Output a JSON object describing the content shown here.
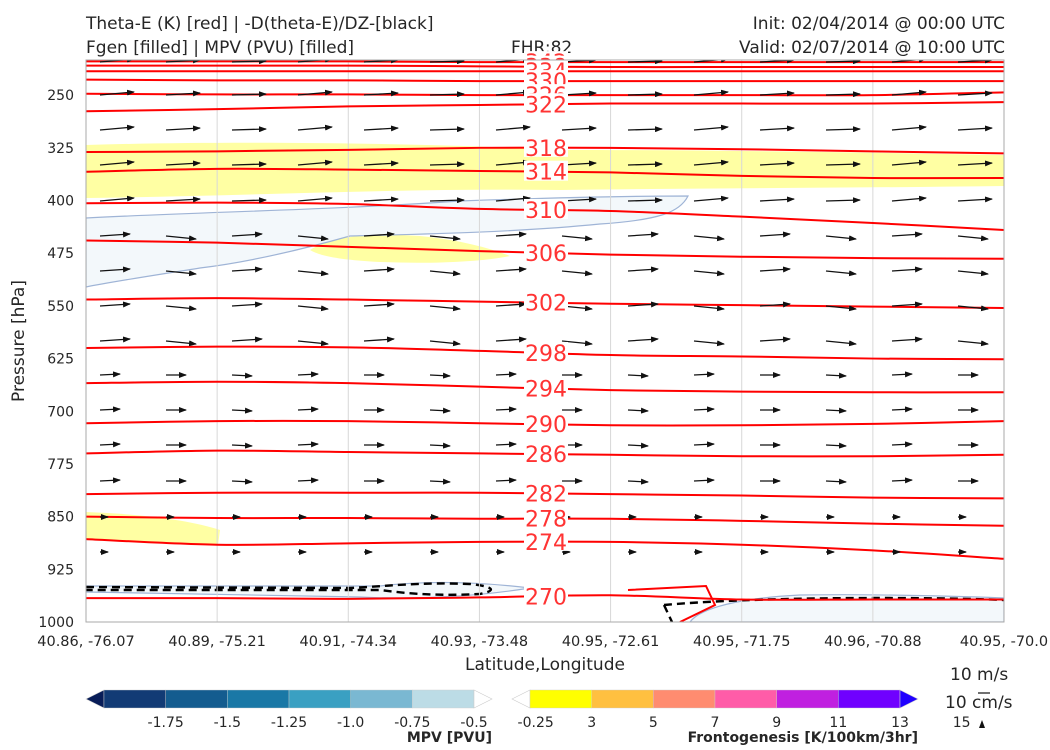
{
  "header": {
    "title_line1": "Theta-E (K) [red] | -D(theta-E)/DZ-[black]",
    "title_line2": "Fgen [filled] | MPV (PVU) [filled]",
    "fhr": "FHR:82",
    "init": "Init: 02/04/2014 @ 00:00 UTC",
    "valid": "Valid: 02/07/2014 @ 10:00 UTC"
  },
  "chart_data": {
    "type": "cross-section",
    "ylabel": "Pressure [hPa]",
    "xlabel": "Latitude,Longitude",
    "y_ticks": [
      250,
      325,
      400,
      475,
      550,
      625,
      700,
      775,
      850,
      925,
      1000
    ],
    "ylim": [
      200,
      1000
    ],
    "y_inverted": true,
    "x_ticks": [
      "40.86, -76.07",
      "40.89, -75.21",
      "40.91, -74.34",
      "40.93, -73.48",
      "40.95, -72.61",
      "40.95, -71.75",
      "40.96, -70.88",
      "40.95, -70.0"
    ],
    "theta_e_contours": [
      {
        "level": 342,
        "label": "342",
        "pressures": [
          202,
          202,
          202,
          203,
          203,
          203,
          203,
          203
        ]
      },
      {
        "level": 338,
        "label": "338",
        "pressures": [
          208,
          208,
          208,
          209,
          210,
          210,
          210,
          210
        ]
      },
      {
        "level": 334,
        "label": "334",
        "pressures": [
          216,
          216,
          216,
          216,
          216,
          216,
          216,
          216
        ]
      },
      {
        "level": 330,
        "label": "330",
        "pressures": [
          228,
          229,
          229,
          230,
          230,
          230,
          230,
          230
        ]
      },
      {
        "level": 326,
        "label": "326",
        "pressures": [
          248,
          249,
          249,
          250,
          250,
          250,
          250,
          246
        ]
      },
      {
        "level": 322,
        "label": "322",
        "pressures": [
          273,
          270,
          266,
          264,
          262,
          262,
          262,
          260
        ]
      },
      {
        "level": 318,
        "label": "318",
        "pressures": [
          331,
          330,
          328,
          325,
          325,
          327,
          330,
          333
        ]
      },
      {
        "level": 314,
        "label": "314",
        "pressures": [
          359,
          355,
          356,
          358,
          360,
          365,
          368,
          368
        ]
      },
      {
        "level": 310,
        "label": "310",
        "pressures": [
          404,
          403,
          405,
          412,
          415,
          423,
          432,
          442
        ]
      },
      {
        "level": 306,
        "label": "306",
        "pressures": [
          457,
          460,
          466,
          472,
          477,
          480,
          482,
          483
        ]
      },
      {
        "level": 302,
        "label": "302",
        "pressures": [
          541,
          539,
          541,
          544,
          547,
          549,
          551,
          553
        ]
      },
      {
        "level": 298,
        "label": "298",
        "pressures": [
          610,
          608,
          609,
          614,
          620,
          622,
          625,
          626
        ]
      },
      {
        "level": 294,
        "label": "294",
        "pressures": [
          660,
          658,
          660,
          665,
          670,
          672,
          673,
          673
        ]
      },
      {
        "level": 290,
        "label": "290",
        "pressures": [
          717,
          714,
          714,
          717,
          720,
          720,
          718,
          714
        ]
      },
      {
        "level": 286,
        "label": "286",
        "pressures": [
          760,
          756,
          758,
          760,
          762,
          764,
          764,
          762
        ]
      },
      {
        "level": 282,
        "label": "282",
        "pressures": [
          818,
          816,
          816,
          816,
          818,
          820,
          823,
          824
        ]
      },
      {
        "level": 278,
        "label": "278",
        "pressures": [
          850,
          852,
          852,
          853,
          853,
          856,
          860,
          863
        ]
      },
      {
        "level": 274,
        "label": "274",
        "pressures": [
          882,
          890,
          888,
          886,
          886,
          890,
          898,
          910
        ]
      },
      {
        "level": 270,
        "label": "270",
        "pressures": [
          966,
          966,
          967,
          965,
          962,
          968,
          968,
          968
        ]
      }
    ],
    "fgen_colorbar": {
      "title": "Frontogenesis [K/100km/3hr]",
      "ticks": [
        "3",
        "5",
        "7",
        "9",
        "11",
        "13",
        "15"
      ],
      "colors": [
        "#ffffff",
        "#ffff00",
        "#ffc040",
        "#ff8c70",
        "#ff5ca8",
        "#c020e0",
        "#7000ff",
        "#2000ff"
      ]
    },
    "mpv_colorbar": {
      "title": "MPV [PVU]",
      "ticks": [
        "-1.75",
        "-1.5",
        "-1.25",
        "-1.0",
        "-0.75",
        "-0.5",
        "-0.25"
      ],
      "colors": [
        "#081d58",
        "#123b75",
        "#145c8f",
        "#1a78a6",
        "#3aa0c2",
        "#7ab8d2",
        "#bcdce6",
        "#ffffff"
      ]
    },
    "wind_reference": {
      "horizontal": "10 m/s",
      "vertical": "10 cm/s"
    }
  }
}
